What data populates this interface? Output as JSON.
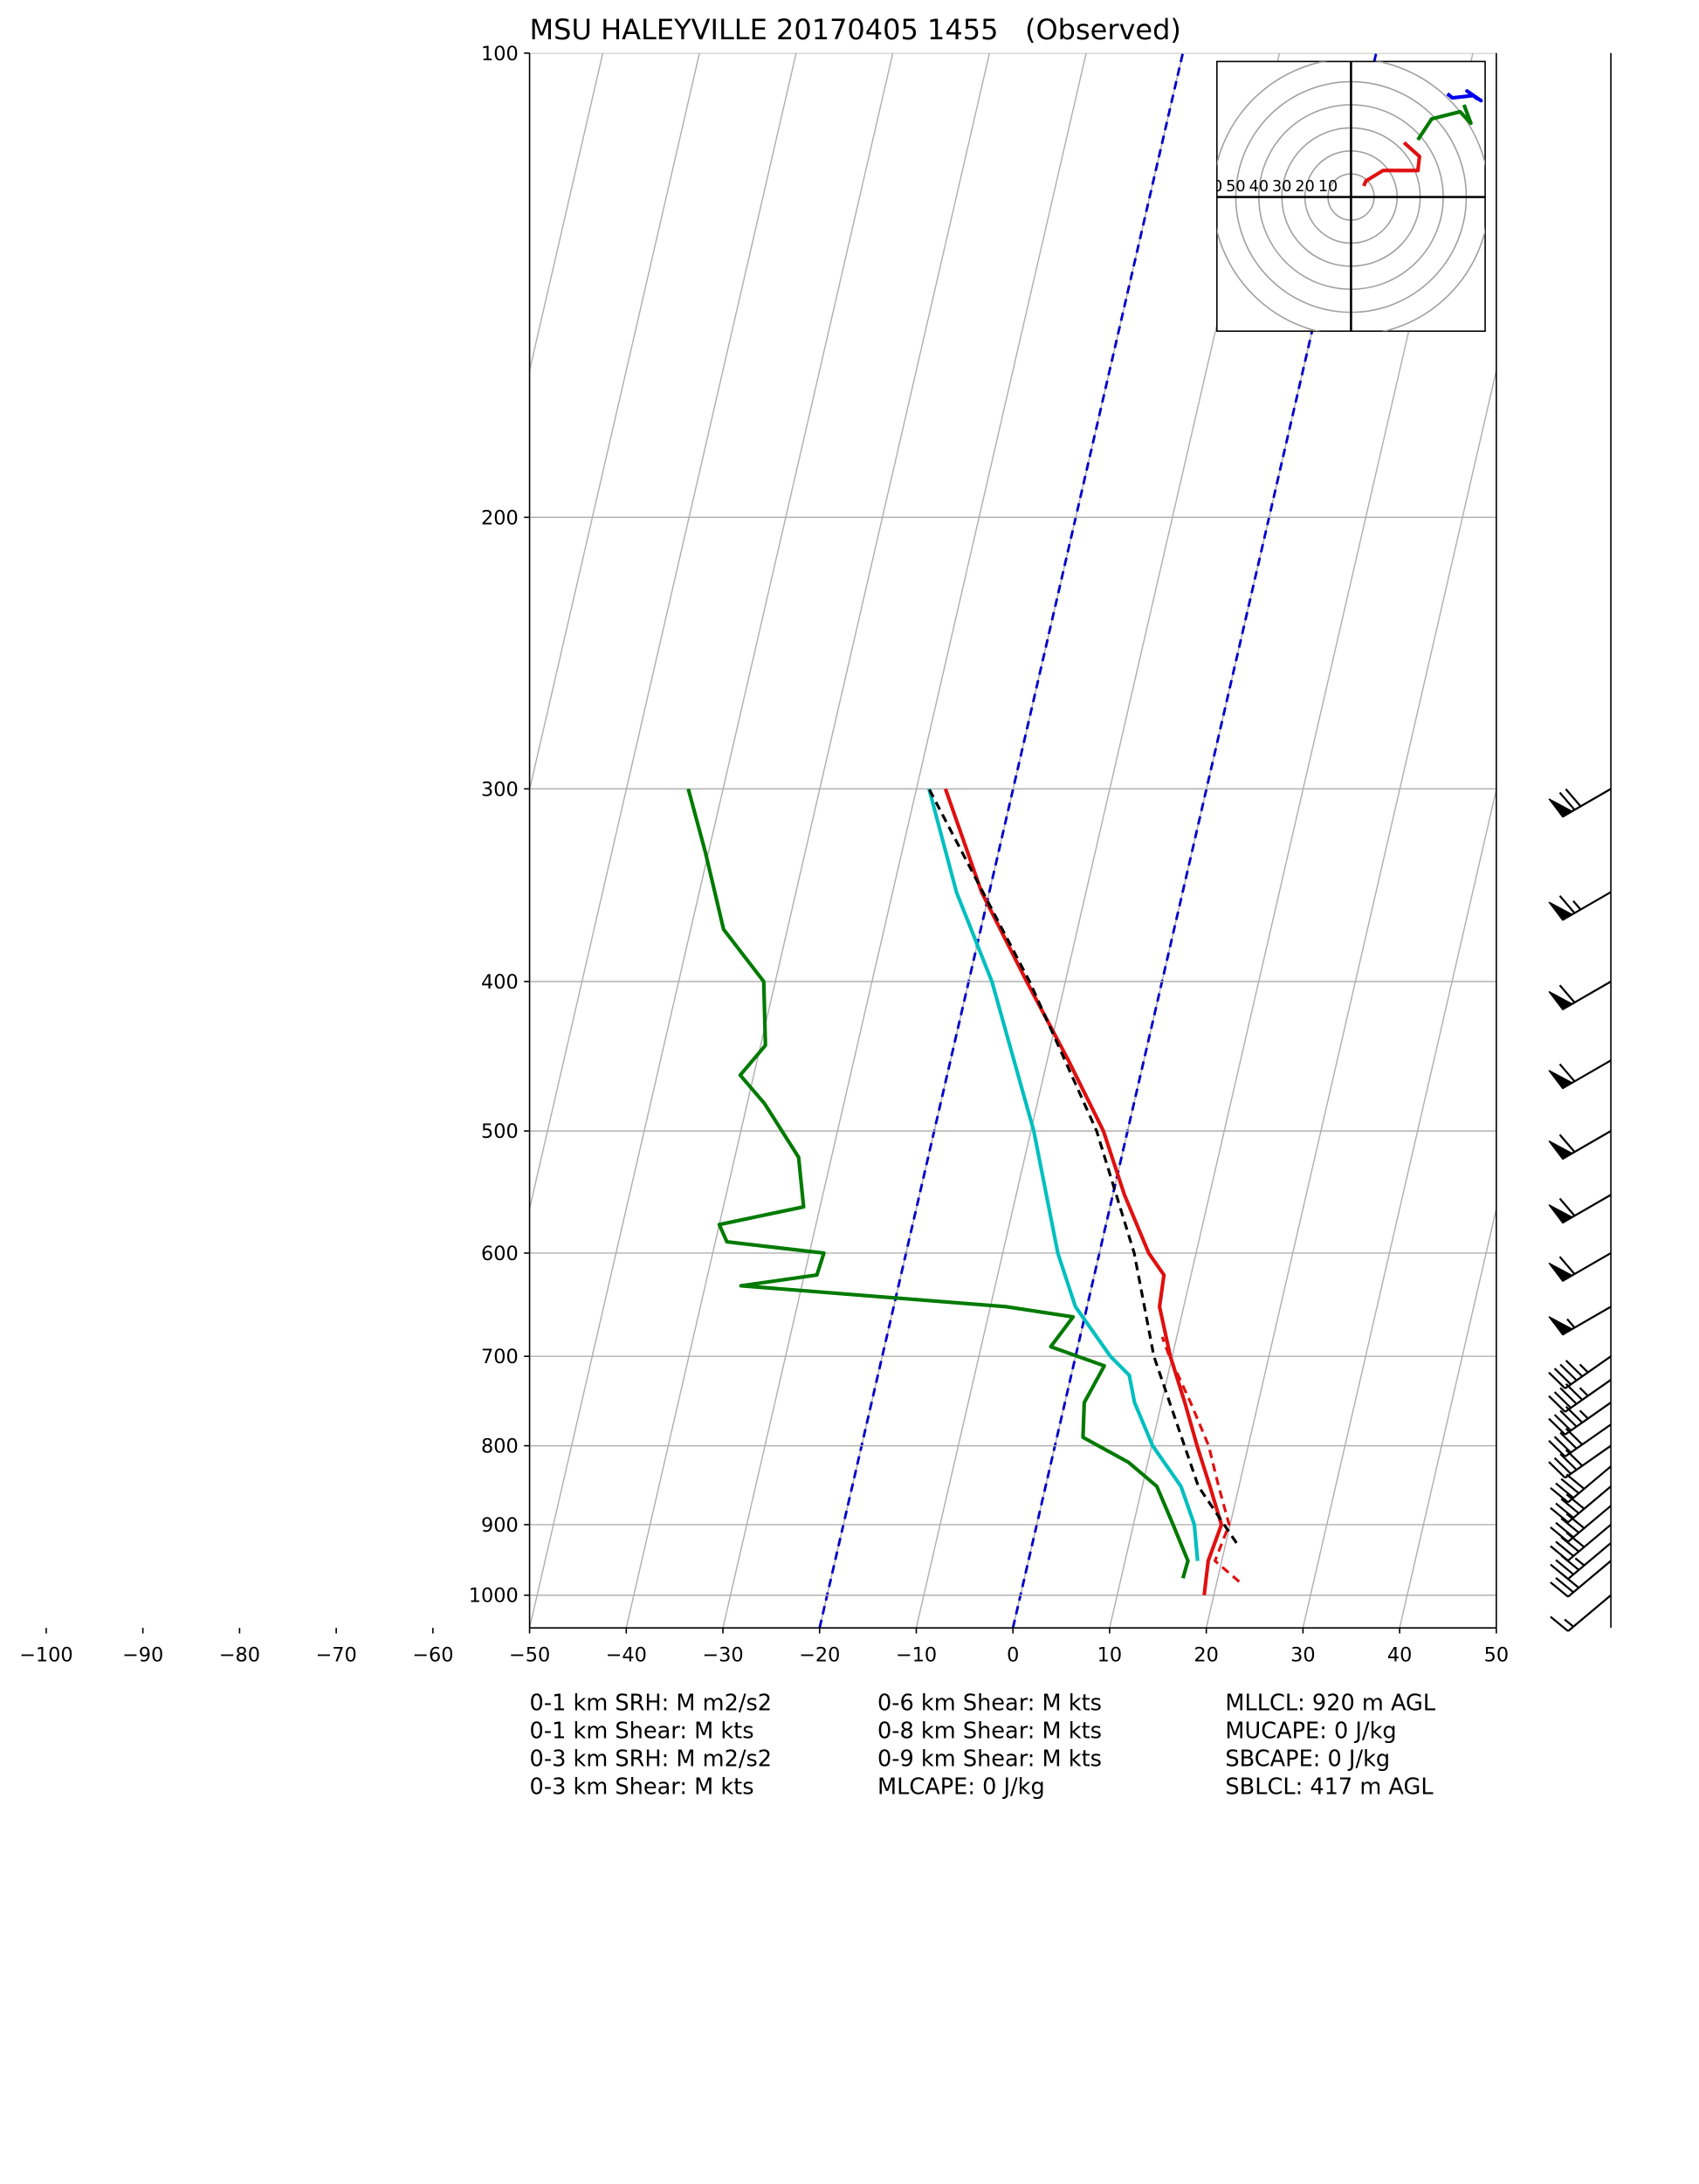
{
  "chart_data": {
    "type": "skewt",
    "title": "MSU HALEYVILLE 20170405 1455   (Observed)",
    "xlim": [
      -50,
      50
    ],
    "ylim": [
      1050,
      100
    ],
    "ylog": true,
    "grid": true,
    "xticks": [
      {
        "value": -100,
        "label": "−100"
      },
      {
        "value": -90,
        "label": "−90"
      },
      {
        "value": -80,
        "label": "−80"
      },
      {
        "value": -70,
        "label": "−70"
      },
      {
        "value": -60,
        "label": "−60"
      },
      {
        "value": -50,
        "label": "−50"
      },
      {
        "value": -40,
        "label": "−40"
      },
      {
        "value": -30,
        "label": "−30"
      },
      {
        "value": -20,
        "label": "−20"
      },
      {
        "value": -10,
        "label": "−10"
      },
      0,
      10,
      20,
      30,
      40,
      50
    ],
    "yticks": [
      100,
      200,
      300,
      400,
      500,
      600,
      700,
      800,
      900,
      1000
    ],
    "highlight_isotherms": {
      "values": [
        -20,
        0
      ],
      "color": "#0000cc"
    },
    "series": [
      {
        "color": "#e01010",
        "style": "solid",
        "pressure": [
          1000,
          950,
          900,
          850,
          800,
          750,
          700,
          650,
          620,
          600,
          550,
          500,
          450,
          400,
          350,
          300
        ],
        "temperature": [
          19.0,
          18.6,
          19.1,
          17.0,
          14.7,
          12.4,
          9.8,
          7.5,
          7.2,
          5.1,
          1.2,
          -2.5,
          -7.8,
          -14.0,
          -20.8,
          -27.0
        ]
      },
      {
        "color": "#e01010",
        "style": "dashed",
        "pressure": [
          980,
          950,
          900,
          850,
          800,
          750,
          700,
          680
        ],
        "temperature": [
          22.3,
          19.3,
          19.9,
          17.9,
          15.9,
          13.0,
          9.7,
          8.5
        ]
      },
      {
        "color": "#00bfbf",
        "style": "solid",
        "pressure": [
          950,
          900,
          850,
          800,
          750,
          720,
          700,
          650,
          600,
          500,
          400,
          350,
          300
        ],
        "temperature": [
          17.5,
          16.3,
          14.0,
          10.1,
          7.2,
          6.0,
          3.6,
          -1.2,
          -4.3,
          -9.7,
          -17.6,
          -23.4,
          -28.7
        ]
      },
      {
        "color": "#000000",
        "style": "dashed",
        "pressure": [
          925,
          850,
          700,
          600,
          500,
          400,
          300
        ],
        "temperature": [
          21.1,
          15.8,
          8.1,
          3.6,
          -3.2,
          -13.7,
          -28.7
        ]
      },
      {
        "color": "#007a00",
        "style": "solid",
        "pressure": [
          975,
          950,
          900,
          850,
          820,
          790,
          750,
          710,
          690,
          660,
          650,
          630,
          620,
          600,
          590,
          575,
          560,
          520,
          480,
          460,
          440,
          400,
          370,
          330,
          300
        ],
        "temperature": [
          16.4,
          16.5,
          14.1,
          11.5,
          8.0,
          2.7,
          2.0,
          3.2,
          -2.8,
          -1.2,
          -8.4,
          -36.3,
          -28.7,
          -28.5,
          -38.8,
          -40.0,
          -31.7,
          -33.4,
          -38.2,
          -41.4,
          -39.5,
          -41.2,
          -46.6,
          -50.3,
          -53.6
        ]
      }
    ],
    "hodograph": {
      "rings": [
        10,
        20,
        30,
        40,
        50,
        60
      ],
      "series": [
        {
          "color": "#e01010",
          "u": [
            5.5,
            6.5,
            13.9,
            29.0,
            29.7,
            23.0
          ],
          "v": [
            4.8,
            7.0,
            11.5,
            11.5,
            17.6,
            23.6
          ]
        },
        {
          "color": "#007a00",
          "u": [
            29.0,
            35.0,
            47.3,
            52.0,
            49.0
          ],
          "v": [
            24.8,
            33.9,
            37.0,
            32.0,
            40.0
          ]
        },
        {
          "color": "#0000ee",
          "u": [
            41.8,
            44.0,
            53.0,
            56.4,
            50.3,
            55.0
          ],
          "v": [
            44.8,
            43.0,
            44.0,
            41.8,
            46.0,
            42.5
          ]
        }
      ]
    },
    "wind_barbs": {
      "pressure": [
        1000,
        950,
        925,
        900,
        875,
        850,
        825,
        800,
        775,
        750,
        725,
        700,
        650,
        600,
        550,
        500,
        450,
        400,
        350,
        300
      ],
      "speed": [
        15,
        30,
        35,
        40,
        40,
        40,
        40,
        40,
        40,
        45,
        45,
        45,
        55,
        60,
        60,
        60,
        60,
        60,
        65,
        70
      ],
      "direction": [
        230,
        230,
        230,
        230,
        230,
        230,
        230,
        235,
        235,
        235,
        235,
        235,
        240,
        240,
        240,
        240,
        240,
        240,
        240,
        240
      ]
    },
    "stats": [
      [
        "0-1 km SRH: M m2/s2",
        "0-1 km Shear: M kts",
        "0-3 km SRH: M m2/s2",
        "0-3 km Shear: M kts"
      ],
      [
        "0-6 km Shear: M kts",
        "0-8 km Shear: M kts",
        "0-9 km Shear: M kts",
        "MLCAPE: 0 J/kg"
      ],
      [
        "MLLCL: 920 m AGL",
        "MUCAPE: 0 J/kg",
        "SBCAPE: 0 J/kg",
        "SBLCL: 417 m AGL"
      ]
    ]
  }
}
